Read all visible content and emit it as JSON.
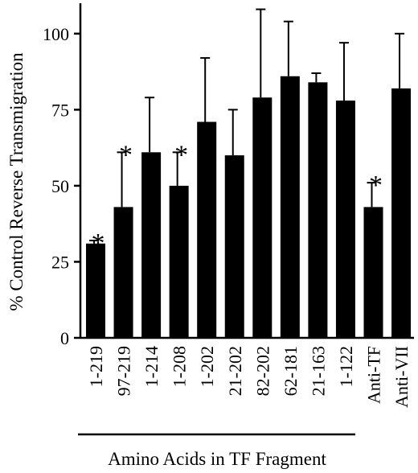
{
  "chart_data": {
    "type": "bar",
    "title": "",
    "ylabel": "% Control Reverse Transmigration",
    "xlabel": "Amino Acids in TF Fragment",
    "ylim": [
      0,
      110
    ],
    "yticks": [
      0,
      25,
      50,
      75,
      100
    ],
    "categories": [
      "1-219",
      "97-219",
      "1-214",
      "1-208",
      "1-202",
      "21-202",
      "82-202",
      "62-181",
      "21-163",
      "1-122",
      "Anti-TF",
      "Anti-VII"
    ],
    "values": [
      31,
      43,
      61,
      50,
      71,
      60,
      79,
      86,
      84,
      78,
      43,
      82
    ],
    "error_upper": [
      1,
      18,
      18,
      11,
      21,
      15,
      29,
      18,
      3,
      19,
      8,
      18
    ],
    "significant": [
      true,
      true,
      false,
      true,
      false,
      false,
      false,
      false,
      false,
      false,
      true,
      false
    ],
    "significance_marker": "*",
    "fragment_group_count": 10,
    "bar_color": "#000000"
  }
}
